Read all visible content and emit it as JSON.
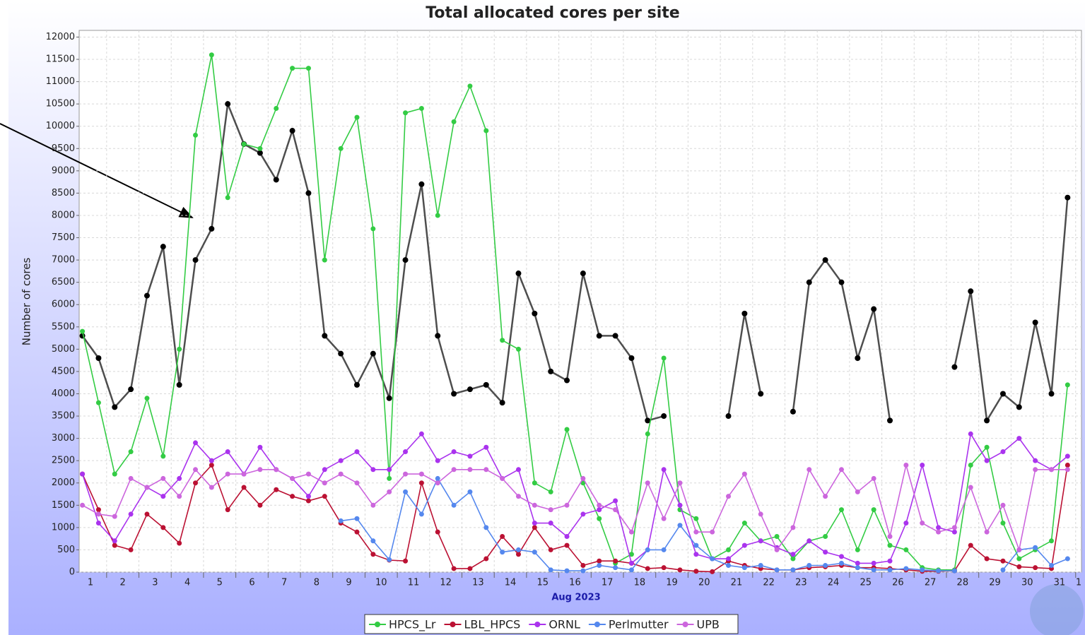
{
  "chart_data": {
    "type": "line",
    "title": "Total allocated cores per site",
    "ylabel": "Number of cores",
    "xlabel": "Aug 2023",
    "x": [
      1.25,
      1.75,
      2.25,
      2.75,
      3.25,
      3.75,
      4.25,
      4.75,
      5.25,
      5.75,
      6.25,
      6.75,
      7.25,
      7.75,
      8.25,
      8.75,
      9.25,
      9.75,
      10.25,
      10.75,
      11.25,
      11.75,
      12.25,
      12.75,
      13.25,
      13.75,
      14.25,
      14.75,
      15.25,
      15.75,
      16.25,
      16.75,
      17.25,
      17.75,
      18.25,
      18.75,
      19.25,
      19.75,
      20.25,
      20.75,
      21.25,
      21.75,
      22.25,
      22.75,
      23.25,
      23.75,
      24.25,
      24.75,
      25.25,
      25.75,
      26.25,
      26.75,
      27.25,
      27.75,
      28.25,
      28.75,
      29.25,
      29.75,
      30.25,
      30.75,
      31.25,
      31.75
    ],
    "xlim": [
      1.15,
      32.18
    ],
    "xticks": [
      1,
      2,
      3,
      4,
      5,
      6,
      7,
      8,
      9,
      10,
      11,
      12,
      13,
      14,
      15,
      16,
      17,
      18,
      19,
      20,
      21,
      22,
      23,
      24,
      25,
      26,
      27,
      28,
      29,
      30,
      31,
      {
        "value": 32,
        "label": "1"
      }
    ],
    "ylim": [
      0,
      12150
    ],
    "yticks": [
      0,
      500,
      1000,
      1500,
      2000,
      2500,
      3000,
      3500,
      4000,
      4500,
      5000,
      5500,
      6000,
      6500,
      7000,
      7500,
      8000,
      8500,
      9000,
      9500,
      10000,
      10500,
      11000,
      11500,
      12000
    ],
    "grid": true,
    "legend": "bottom",
    "series": [
      {
        "color": "#222222",
        "values": [
          5300,
          4800,
          3700,
          4100,
          6200,
          7300,
          4200,
          7000,
          7700,
          10500,
          9600,
          9400,
          8800,
          9900,
          8500,
          5300,
          4900,
          4200,
          4900,
          3900,
          7000,
          8700,
          5300,
          4000,
          4100,
          4200,
          3800,
          6700,
          5800,
          4500,
          4300,
          6700,
          5300,
          5300,
          4800,
          3400,
          3500,
          null,
          null,
          null,
          3500,
          5800,
          4000,
          null,
          3600,
          6500,
          7000,
          6500,
          4800,
          5900,
          3400,
          null,
          null,
          null,
          4600,
          6300,
          3400,
          4000,
          3700,
          5600,
          4000,
          8400
        ]
      },
      {
        "name": "HPCS_Lr",
        "color": "#33cc44",
        "values": [
          5400,
          3800,
          2200,
          2700,
          3900,
          2600,
          5000,
          9800,
          11600,
          8400,
          9600,
          9500,
          10400,
          11300,
          11300,
          7000,
          9500,
          10200,
          7700,
          2100,
          10300,
          10400,
          8000,
          10100,
          10900,
          9900,
          5200,
          5000,
          2000,
          1800,
          3200,
          2000,
          1200,
          200,
          400,
          3100,
          4800,
          1400,
          1200,
          300,
          500,
          1100,
          700,
          800,
          300,
          700,
          800,
          1400,
          500,
          1400,
          600,
          500,
          100,
          50,
          50,
          2400,
          2800,
          1100,
          300,
          500,
          700,
          4200
        ]
      },
      {
        "name": "LBL_HPCS",
        "color": "#bb1133",
        "values": [
          2200,
          1400,
          600,
          500,
          1300,
          1000,
          650,
          2000,
          2400,
          1400,
          1900,
          1500,
          1850,
          1700,
          1600,
          1700,
          1100,
          900,
          400,
          270,
          250,
          2000,
          900,
          80,
          80,
          300,
          800,
          400,
          1000,
          500,
          600,
          150,
          250,
          250,
          200,
          80,
          100,
          50,
          20,
          10,
          250,
          150,
          80,
          50,
          50,
          100,
          120,
          150,
          100,
          100,
          80,
          50,
          20,
          20,
          30,
          600,
          300,
          250,
          120,
          100,
          80,
          2400
        ]
      },
      {
        "name": "ORNL",
        "color": "#aa33ee",
        "values": [
          2200,
          1100,
          700,
          1300,
          1900,
          1700,
          2100,
          2900,
          2500,
          2700,
          2200,
          2800,
          2300,
          2100,
          1700,
          2300,
          2500,
          2700,
          2300,
          2300,
          2700,
          3100,
          2500,
          2700,
          2600,
          2800,
          2100,
          2300,
          1100,
          1100,
          800,
          1300,
          1400,
          1600,
          200,
          500,
          2300,
          1500,
          400,
          300,
          300,
          600,
          700,
          550,
          400,
          700,
          450,
          350,
          200,
          200,
          250,
          1100,
          2400,
          1000,
          900,
          3100,
          2500,
          2700,
          3000,
          2500,
          2300,
          2600
        ]
      },
      {
        "name": "Perlmutter",
        "color": "#5588ee",
        "values": [
          null,
          null,
          null,
          null,
          null,
          null,
          null,
          null,
          null,
          null,
          null,
          null,
          null,
          null,
          null,
          null,
          1150,
          1200,
          700,
          280,
          1800,
          1300,
          2100,
          1500,
          1800,
          1000,
          450,
          500,
          450,
          50,
          30,
          30,
          150,
          100,
          50,
          500,
          500,
          1050,
          600,
          300,
          150,
          100,
          150,
          50,
          50,
          150,
          150,
          200,
          100,
          50,
          50,
          80,
          50,
          30,
          30,
          null,
          null,
          50,
          500,
          550,
          150,
          300
        ]
      },
      {
        "name": "UPB",
        "color": "#cc66dd",
        "values": [
          1500,
          1300,
          1250,
          2100,
          1900,
          2100,
          1700,
          2300,
          1900,
          2200,
          2200,
          2300,
          2300,
          2100,
          2200,
          2000,
          2200,
          2000,
          1500,
          1800,
          2200,
          2200,
          2000,
          2300,
          2300,
          2300,
          2100,
          1700,
          1500,
          1400,
          1500,
          2100,
          1500,
          1400,
          900,
          2000,
          1200,
          2000,
          900,
          900,
          1700,
          2200,
          1300,
          500,
          1000,
          2300,
          1700,
          2300,
          1800,
          2100,
          800,
          2400,
          1100,
          900,
          1000,
          1900,
          900,
          1500,
          500,
          2300,
          2300,
          2300
        ]
      }
    ]
  }
}
